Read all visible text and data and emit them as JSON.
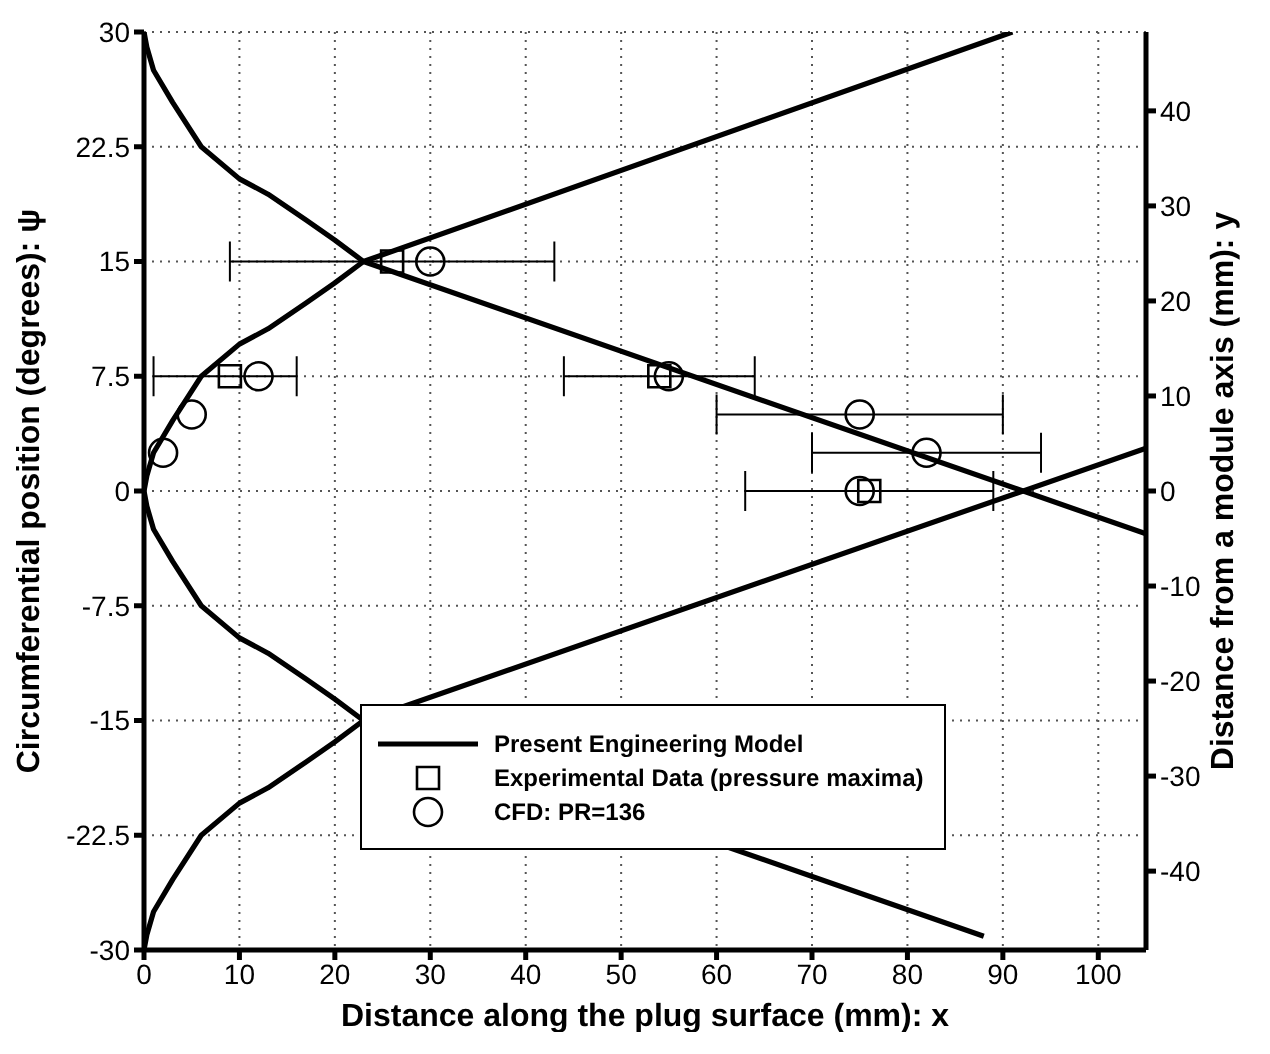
{
  "chart_data": {
    "type": "line",
    "xlabel": "Distance along the plug surface (mm): x",
    "ylabel": "Circumferential position (degrees): ψ",
    "y2label": "Distance from a module axis (mm): y",
    "xlim": [
      0,
      105
    ],
    "xticks": [
      0,
      10,
      20,
      30,
      40,
      50,
      60,
      70,
      80,
      90,
      100
    ],
    "ylim": [
      -30,
      30
    ],
    "yticks": [
      -30,
      -22.5,
      -15,
      -7.5,
      0,
      7.5,
      15,
      22.5,
      30
    ],
    "y2lim": [
      -48.3,
      48.3
    ],
    "y2ticks": [
      -40,
      -30,
      -20,
      -10,
      0,
      10,
      20,
      30,
      40
    ],
    "grid": true,
    "legend": "bottom",
    "series": [
      {
        "name": "Present Engineering Model",
        "color": "#000000",
        "marker": "none",
        "line_style": "solid",
        "x": [
          0,
          0.3,
          1,
          3,
          6,
          10,
          13,
          17,
          20,
          23,
          105
        ],
        "values": [
          30,
          29,
          27.5,
          25.4,
          22.5,
          20.4,
          19.4,
          17.7,
          16.4,
          15,
          -2.8
        ]
      },
      {
        "color": "#000000",
        "marker": "none",
        "line_style": "solid",
        "x": [
          91,
          23,
          20,
          17,
          13,
          10,
          6,
          3,
          1,
          0.3,
          0,
          0.3,
          1,
          3,
          6,
          10,
          13,
          17,
          20,
          23,
          88
        ],
        "values": [
          30,
          15,
          13.6,
          12.3,
          10.6,
          9.6,
          7.5,
          4.6,
          2.5,
          1,
          0,
          -1,
          -2.5,
          -4.6,
          -7.5,
          -9.6,
          -10.6,
          -12.3,
          -13.6,
          -15,
          -29.1
        ]
      },
      {
        "color": "#000000",
        "marker": "none",
        "line_style": "solid",
        "x": [
          0,
          0.3,
          1,
          3,
          6,
          10,
          13,
          17,
          20,
          23,
          105
        ],
        "values": [
          -30,
          -29,
          -27.5,
          -25.4,
          -22.5,
          -20.4,
          -19.4,
          -17.7,
          -16.4,
          -15,
          2.8
        ]
      },
      {
        "name": "Experimental Data (pressure maxima)",
        "type": "scatter",
        "color": "#000000",
        "marker": "square",
        "x": [
          26,
          9,
          54,
          76
        ],
        "values": [
          15,
          7.5,
          7.5,
          0
        ],
        "xerrors": [
          [
            9,
            43
          ],
          [
            1,
            16
          ],
          [
            44,
            64
          ],
          [
            63,
            89
          ]
        ]
      },
      {
        "name": "CFD: PR=136",
        "type": "scatter",
        "color": "#000000",
        "marker": "circle",
        "x": [
          30,
          12,
          5,
          2,
          55,
          75,
          82,
          75
        ],
        "values": [
          15,
          7.5,
          5,
          2.5,
          7.5,
          5,
          2.5,
          0
        ],
        "xerrors": [
          null,
          null,
          null,
          null,
          null,
          [
            60,
            90
          ],
          [
            70,
            94
          ],
          null
        ]
      }
    ]
  }
}
